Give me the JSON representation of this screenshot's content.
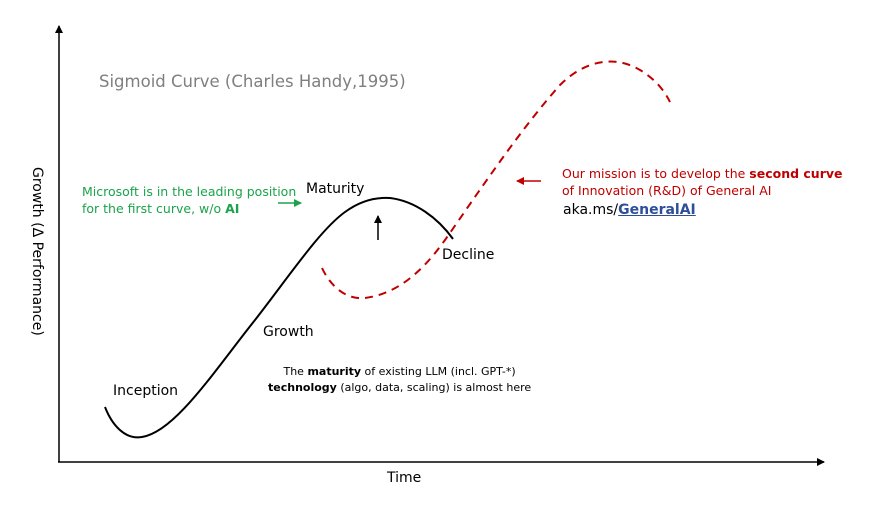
{
  "title": "Sigmoid Curve (Charles Handy,1995)",
  "axes": {
    "x_label": "Time",
    "y_label": "Growth (Δ Performance)"
  },
  "stages": {
    "inception": "Inception",
    "growth": "Growth",
    "maturity": "Maturity",
    "decline": "Decline"
  },
  "microsoft_note": {
    "line1": "Microsoft is in the leading position",
    "line2_prefix": "for the first curve, w/o ",
    "line2_bold": "AI"
  },
  "mission": {
    "line1_prefix": "Our mission is to develop the ",
    "line1_bold": "second curve",
    "line2": "of Innovation (R&D) of General AI"
  },
  "link": {
    "prefix": "aka.ms/",
    "emphasis": "GeneralAI"
  },
  "llm_note": {
    "line1_prefix": "The ",
    "line1_bold": "maturity",
    "line1_suffix": " of existing LLM (incl. GPT-*)",
    "line2_bold": "technology",
    "line2_suffix": " (algo, data, scaling) is almost here"
  },
  "colors": {
    "first_curve": "#000000",
    "second_curve": "#c00000",
    "green": "#1aa34a",
    "title_gray": "#7f7f7f"
  }
}
